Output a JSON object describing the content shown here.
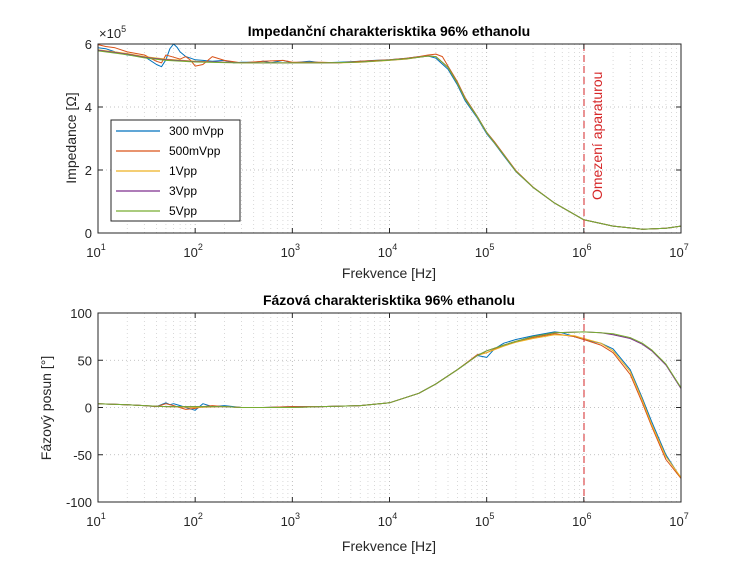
{
  "chart_data": [
    {
      "type": "line",
      "title": "Impedanční charakterisktika 96% ethanolu",
      "xlabel": "Frekvence [Hz]",
      "ylabel": "Impedance [Ω]",
      "xscale": "log",
      "xlim": [
        10,
        10000000
      ],
      "ylim": [
        0,
        600000
      ],
      "y_exponent_label": "×10",
      "y_exponent": "5",
      "x_tick_values": [
        10,
        100,
        1000,
        10000,
        100000,
        1000000,
        10000000
      ],
      "x_tick_base": "10",
      "x_tick_exponents": [
        "1",
        "2",
        "3",
        "4",
        "5",
        "6",
        "7"
      ],
      "y_tick_values": [
        0,
        200000,
        400000,
        600000
      ],
      "y_tick_labels": [
        "0",
        "2",
        "4",
        "6"
      ],
      "grid": "major and minor, dotted",
      "legend_position": "lower-left",
      "colors": [
        "#0072BD",
        "#D95319",
        "#EDB120",
        "#7E2F8E",
        "#77AC30"
      ],
      "annotation": {
        "text": "Omezení aparaturou",
        "x": 1000000,
        "color": "#d62728"
      },
      "series": [
        {
          "name": "300 mVpp",
          "x": [
            10,
            12,
            15,
            20,
            30,
            40,
            45,
            50,
            55,
            60,
            65,
            70,
            80,
            90,
            100,
            120,
            150,
            200,
            250,
            300,
            400,
            500,
            600,
            800,
            1000,
            1500,
            2000,
            3000,
            5000,
            7000,
            10000,
            15000,
            20000,
            25000,
            30000,
            40000,
            50000,
            60000,
            80000,
            100000,
            120000,
            150000,
            200000,
            300000,
            500000,
            1000000,
            2000000,
            4000000,
            7000000,
            10000000
          ],
          "y": [
            588000,
            585000,
            575000,
            565000,
            560000,
            535000,
            528000,
            550000,
            585000,
            600000,
            590000,
            575000,
            560000,
            555000,
            550000,
            548000,
            545000,
            548000,
            540000,
            542000,
            542000,
            545000,
            540000,
            548000,
            540000,
            545000,
            540000,
            542000,
            545000,
            548000,
            550000,
            555000,
            560000,
            562000,
            555000,
            520000,
            470000,
            420000,
            365000,
            315000,
            285000,
            245000,
            195000,
            145000,
            95000,
            42000,
            22000,
            12000,
            15000,
            22000
          ]
        },
        {
          "name": "500mVpp",
          "x": [
            10,
            12,
            15,
            20,
            30,
            40,
            45,
            50,
            60,
            70,
            80,
            90,
            100,
            120,
            150,
            200,
            300,
            500,
            800,
            1000,
            2000,
            3000,
            5000,
            10000,
            15000,
            20000,
            25000,
            30000,
            35000,
            40000,
            50000,
            60000,
            80000,
            100000,
            120000,
            150000,
            200000,
            300000,
            500000,
            1000000,
            2000000,
            4000000,
            7000000,
            10000000
          ],
          "y": [
            598000,
            592000,
            588000,
            575000,
            565000,
            545000,
            540000,
            565000,
            558000,
            552000,
            560000,
            548000,
            530000,
            535000,
            560000,
            548000,
            540000,
            545000,
            548000,
            542000,
            542000,
            540000,
            545000,
            550000,
            555000,
            560000,
            565000,
            568000,
            560000,
            530000,
            480000,
            430000,
            370000,
            320000,
            290000,
            250000,
            198000,
            146000,
            95000,
            42000,
            22000,
            12000,
            15000,
            22000
          ]
        },
        {
          "name": "1Vpp",
          "x": [
            10,
            20,
            30,
            50,
            100,
            200,
            300,
            500,
            1000,
            2000,
            3000,
            5000,
            10000,
            15000,
            20000,
            25000,
            30000,
            40000,
            50000,
            60000,
            80000,
            100000,
            150000,
            200000,
            300000,
            500000,
            1000000,
            2000000,
            4000000,
            7000000,
            10000000
          ],
          "y": [
            582000,
            570000,
            560000,
            552000,
            545000,
            542000,
            540000,
            540000,
            540000,
            540000,
            540000,
            542000,
            548000,
            552000,
            558000,
            562000,
            560000,
            525000,
            475000,
            425000,
            368000,
            318000,
            248000,
            196000,
            145000,
            95000,
            42000,
            22000,
            12000,
            15000,
            22000
          ]
        },
        {
          "name": "3Vpp",
          "x": [
            10,
            20,
            30,
            50,
            100,
            200,
            300,
            500,
            1000,
            2000,
            3000,
            5000,
            10000,
            15000,
            20000,
            25000,
            30000,
            40000,
            50000,
            60000,
            80000,
            100000,
            150000,
            200000,
            300000,
            500000,
            1000000,
            2000000,
            4000000,
            7000000,
            10000000
          ],
          "y": [
            580000,
            568000,
            558000,
            550000,
            544000,
            542000,
            541000,
            540000,
            540000,
            540000,
            541000,
            543000,
            549000,
            553000,
            558000,
            562000,
            560000,
            526000,
            476000,
            426000,
            369000,
            319000,
            248000,
            196000,
            145000,
            95000,
            42000,
            22000,
            12000,
            15000,
            22000
          ]
        },
        {
          "name": "5Vpp",
          "x": [
            10,
            20,
            30,
            50,
            100,
            200,
            300,
            500,
            1000,
            2000,
            3000,
            5000,
            10000,
            15000,
            20000,
            25000,
            30000,
            40000,
            50000,
            60000,
            80000,
            100000,
            150000,
            200000,
            300000,
            500000,
            1000000,
            2000000,
            4000000,
            7000000,
            10000000
          ],
          "y": [
            578000,
            566000,
            556000,
            548000,
            543000,
            541000,
            540000,
            540000,
            540000,
            540000,
            541000,
            543000,
            549000,
            553000,
            558000,
            562000,
            560000,
            526000,
            476000,
            426000,
            369000,
            319000,
            248000,
            196000,
            145000,
            95000,
            42000,
            22000,
            12000,
            15000,
            22000
          ]
        }
      ]
    },
    {
      "type": "line",
      "title": "Fázová charakterisktika 96% ethanolu",
      "xlabel": "Frekvence [Hz]",
      "ylabel": "Fázový posun [°]",
      "xscale": "log",
      "xlim": [
        10,
        10000000
      ],
      "ylim": [
        -100,
        100
      ],
      "x_tick_values": [
        10,
        100,
        1000,
        10000,
        100000,
        1000000,
        10000000
      ],
      "x_tick_base": "10",
      "x_tick_exponents": [
        "1",
        "2",
        "3",
        "4",
        "5",
        "6",
        "7"
      ],
      "y_tick_values": [
        -100,
        -50,
        0,
        50,
        100
      ],
      "y_tick_labels": [
        "-100",
        "-50",
        "0",
        "50",
        "100"
      ],
      "grid": "major and minor, dotted",
      "colors": [
        "#0072BD",
        "#D95319",
        "#EDB120",
        "#7E2F8E",
        "#77AC30"
      ],
      "vline": {
        "x": 1000000,
        "color": "#d62728"
      },
      "series": [
        {
          "name": "300 mVpp",
          "x": [
            10,
            20,
            30,
            40,
            50,
            55,
            60,
            70,
            80,
            100,
            120,
            150,
            200,
            300,
            500,
            1000,
            2000,
            5000,
            10000,
            20000,
            30000,
            50000,
            80000,
            100000,
            120000,
            150000,
            200000,
            300000,
            500000,
            600000,
            800000,
            1000000,
            1500000,
            2000000,
            3000000,
            4000000,
            5000000,
            7000000,
            10000000
          ],
          "y": [
            4,
            3,
            2,
            1,
            5,
            3,
            4,
            2,
            0,
            -3,
            4,
            1,
            2,
            0,
            0,
            1,
            1,
            2,
            5,
            15,
            25,
            40,
            55,
            53,
            62,
            68,
            72,
            76,
            80,
            79,
            75,
            72,
            68,
            62,
            40,
            10,
            -15,
            -50,
            -75
          ]
        },
        {
          "name": "500mVpp",
          "x": [
            10,
            20,
            30,
            40,
            50,
            60,
            80,
            100,
            120,
            150,
            200,
            300,
            500,
            1000,
            2000,
            5000,
            10000,
            20000,
            30000,
            50000,
            80000,
            100000,
            150000,
            200000,
            300000,
            500000,
            800000,
            1000000,
            1500000,
            2000000,
            3000000,
            4000000,
            5000000,
            7000000,
            10000000
          ],
          "y": [
            4,
            3,
            2,
            1,
            4,
            2,
            -2,
            -1,
            1,
            2,
            1,
            0,
            0,
            1,
            1,
            2,
            5,
            15,
            25,
            40,
            56,
            58,
            66,
            70,
            74,
            78,
            75,
            72,
            66,
            58,
            35,
            5,
            -20,
            -55,
            -75
          ]
        },
        {
          "name": "1Vpp",
          "x": [
            10,
            20,
            30,
            50,
            100,
            200,
            300,
            500,
            1000,
            2000,
            5000,
            10000,
            20000,
            30000,
            50000,
            80000,
            100000,
            150000,
            200000,
            300000,
            500000,
            800000,
            1000000,
            1500000,
            2000000,
            3000000,
            4000000,
            5000000,
            7000000,
            10000000
          ],
          "y": [
            4,
            3,
            2,
            1,
            0,
            1,
            0,
            0,
            0,
            1,
            2,
            5,
            15,
            25,
            40,
            55,
            58,
            65,
            69,
            73,
            77,
            76,
            73,
            68,
            60,
            38,
            8,
            -18,
            -52,
            -74
          ]
        },
        {
          "name": "3Vpp",
          "x": [
            10,
            20,
            30,
            50,
            100,
            200,
            300,
            500,
            1000,
            2000,
            5000,
            10000,
            20000,
            30000,
            50000,
            80000,
            100000,
            150000,
            200000,
            300000,
            500000,
            1000000,
            1500000,
            2000000,
            3000000,
            4000000,
            5000000,
            7000000,
            10000000
          ],
          "y": [
            4,
            3,
            2,
            1,
            1,
            1,
            0,
            0,
            0,
            1,
            2,
            5,
            15,
            25,
            40,
            55,
            60,
            66,
            70,
            75,
            79,
            80,
            79,
            77,
            73,
            67,
            60,
            45,
            20
          ]
        },
        {
          "name": "5Vpp",
          "x": [
            10,
            20,
            30,
            50,
            100,
            200,
            300,
            500,
            1000,
            2000,
            5000,
            10000,
            20000,
            30000,
            50000,
            80000,
            100000,
            150000,
            200000,
            300000,
            500000,
            1000000,
            1500000,
            2000000,
            3000000,
            4000000,
            5000000,
            7000000,
            10000000
          ],
          "y": [
            4,
            3,
            2,
            1,
            1,
            1,
            0,
            0,
            0,
            1,
            2,
            5,
            15,
            25,
            40,
            55,
            60,
            66,
            70,
            75,
            79,
            80,
            79,
            78,
            74,
            68,
            61,
            46,
            21
          ]
        }
      ]
    }
  ]
}
